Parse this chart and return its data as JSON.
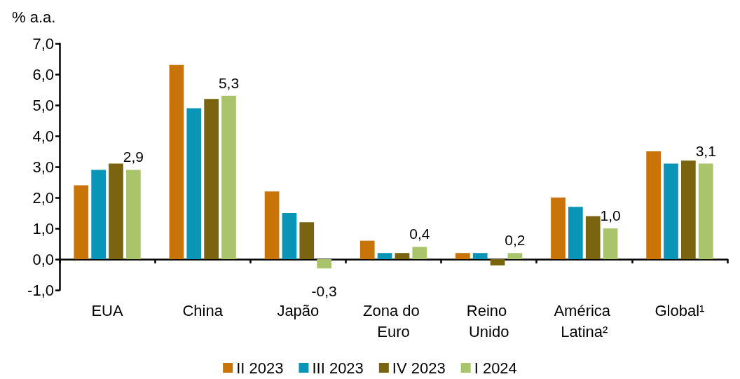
{
  "chart_data": {
    "type": "bar",
    "ylabel": "% a.a.",
    "categories": [
      "EUA",
      "China",
      "Japão",
      "Zona do Euro",
      "Reino Unido",
      "América Latina²",
      "Global¹"
    ],
    "series": [
      {
        "name": "II 2023",
        "color": "#c87408",
        "values": [
          2.4,
          6.3,
          2.2,
          0.6,
          0.2,
          2.0,
          3.5
        ]
      },
      {
        "name": "III 2023",
        "color": "#0895b8",
        "values": [
          2.9,
          4.9,
          1.5,
          0.2,
          0.2,
          1.7,
          3.1
        ]
      },
      {
        "name": "IV 2023",
        "color": "#7a6410",
        "values": [
          3.1,
          5.2,
          1.2,
          0.2,
          -0.2,
          1.4,
          3.2
        ]
      },
      {
        "name": "I 2024",
        "color": "#a9c46b",
        "values": [
          2.9,
          5.3,
          -0.3,
          0.4,
          0.2,
          1.0,
          3.1
        ],
        "value_labels": [
          "2,9",
          "5,3",
          "-0,3",
          "0,4",
          "0,2",
          "1,0",
          "3,1"
        ]
      }
    ],
    "ylim": [
      -1,
      7
    ],
    "yticks": [
      {
        "value": -1,
        "label": "-1,0"
      },
      {
        "value": 0,
        "label": "0,0"
      },
      {
        "value": 1,
        "label": "1,0"
      },
      {
        "value": 2,
        "label": "2,0"
      },
      {
        "value": 3,
        "label": "3,0"
      },
      {
        "value": 4,
        "label": "4,0"
      },
      {
        "value": 5,
        "label": "5,0"
      },
      {
        "value": 6,
        "label": "6,0"
      },
      {
        "value": 7,
        "label": "7,0"
      }
    ],
    "legend": "bottom"
  }
}
